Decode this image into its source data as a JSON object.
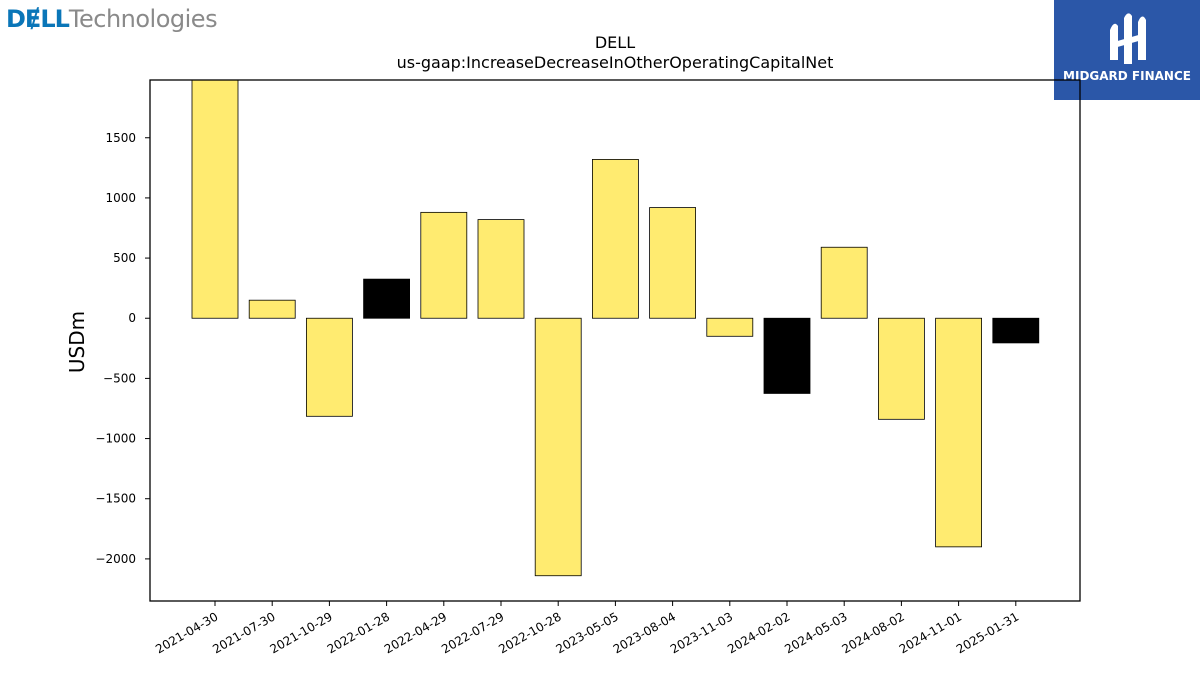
{
  "logos": {
    "left_brand": "DɆLL",
    "left_suffix": "Technologies",
    "right_text": "MIDGARD FINANCE"
  },
  "colors": {
    "bar_positive": "#ffeb70",
    "bar_highlight": "#000000",
    "logo_blue": "#0a76b8",
    "badge_blue": "#2b57a8"
  },
  "chart_data": {
    "type": "bar",
    "title": "DELL",
    "subtitle": "us-gaap:IncreaseDecreaseInOtherOperatingCapitalNet",
    "xlabel": "",
    "ylabel": "USDm",
    "ylim": [
      -2350,
      1980
    ],
    "yticks": [
      1500,
      1000,
      500,
      0,
      -500,
      -1000,
      -1500,
      -2000
    ],
    "ytick_labels": [
      "1500",
      "1000",
      "500",
      "0",
      "−500",
      "−1000",
      "−1500",
      "−2000"
    ],
    "grid": false,
    "categories": [
      "2021-04-30",
      "2021-07-30",
      "2021-10-29",
      "2022-01-28",
      "2022-04-29",
      "2022-07-29",
      "2022-10-28",
      "2023-05-05",
      "2023-08-04",
      "2023-11-03",
      "2024-02-02",
      "2024-05-03",
      "2024-08-02",
      "2024-11-01",
      "2025-01-31"
    ],
    "values": [
      2100,
      150,
      -815,
      325,
      880,
      820,
      -2140,
      1320,
      920,
      -150,
      -625,
      590,
      -840,
      -1900,
      -205
    ],
    "highlight": [
      false,
      false,
      false,
      true,
      false,
      false,
      false,
      false,
      false,
      false,
      true,
      false,
      false,
      false,
      true
    ]
  }
}
